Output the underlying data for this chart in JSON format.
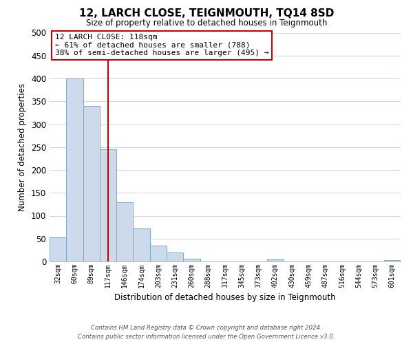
{
  "title": "12, LARCH CLOSE, TEIGNMOUTH, TQ14 8SD",
  "subtitle": "Size of property relative to detached houses in Teignmouth",
  "xlabel": "Distribution of detached houses by size in Teignmouth",
  "ylabel": "Number of detached properties",
  "bar_labels": [
    "32sqm",
    "60sqm",
    "89sqm",
    "117sqm",
    "146sqm",
    "174sqm",
    "203sqm",
    "231sqm",
    "260sqm",
    "288sqm",
    "317sqm",
    "345sqm",
    "373sqm",
    "402sqm",
    "430sqm",
    "459sqm",
    "487sqm",
    "516sqm",
    "544sqm",
    "573sqm",
    "601sqm"
  ],
  "bar_values": [
    53,
    400,
    340,
    245,
    130,
    72,
    35,
    20,
    6,
    0,
    0,
    0,
    0,
    5,
    0,
    0,
    0,
    0,
    0,
    0,
    3
  ],
  "bar_color": "#ccdaeb",
  "bar_edge_color": "#7aaac8",
  "vline_x": 3,
  "vline_color": "#cc0000",
  "ylim": [
    0,
    500
  ],
  "yticks": [
    0,
    50,
    100,
    150,
    200,
    250,
    300,
    350,
    400,
    450,
    500
  ],
  "annotation_title": "12 LARCH CLOSE: 118sqm",
  "annotation_line1": "← 61% of detached houses are smaller (788)",
  "annotation_line2": "38% of semi-detached houses are larger (495) →",
  "annotation_box_color": "#ffffff",
  "annotation_box_edge": "#cc0000",
  "footer_line1": "Contains HM Land Registry data © Crown copyright and database right 2024.",
  "footer_line2": "Contains public sector information licensed under the Open Government Licence v3.0.",
  "background_color": "#ffffff",
  "grid_color": "#d0d8ea"
}
